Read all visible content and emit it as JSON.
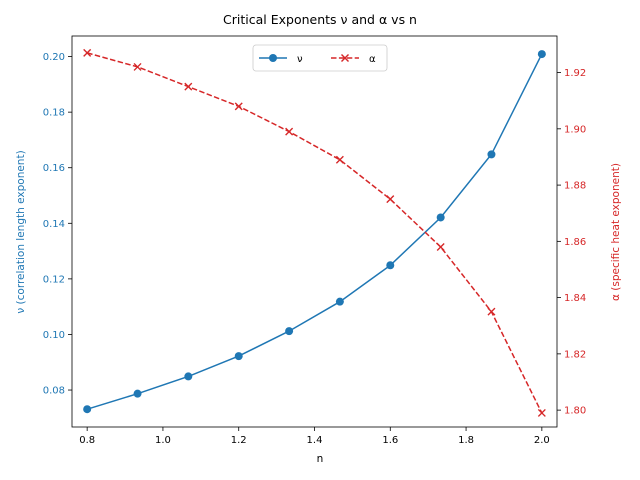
{
  "chart_data": {
    "type": "line",
    "title": "Critical Exponents ν and α vs n",
    "xlabel": "n",
    "ylabel_left": "ν (correlation length exponent)",
    "ylabel_right": "α (specific heat exponent)",
    "xlim": [
      0.76,
      2.04
    ],
    "ylim_left": [
      0.0667,
      0.2074
    ],
    "ylim_right": [
      1.794,
      1.933
    ],
    "x_ticks": [
      "0.8",
      "1.0",
      "1.2",
      "1.4",
      "1.6",
      "1.8",
      "2.0"
    ],
    "y_ticks_left": [
      "0.08",
      "0.10",
      "0.12",
      "0.14",
      "0.16",
      "0.18",
      "0.20"
    ],
    "y_ticks_right": [
      "1.80",
      "1.82",
      "1.84",
      "1.86",
      "1.88",
      "1.90",
      "1.92"
    ],
    "grid": false,
    "legend_position": "top-center",
    "x": [
      0.8,
      0.933,
      1.067,
      1.2,
      1.333,
      1.467,
      1.6,
      1.733,
      1.867,
      2.0
    ],
    "series": [
      {
        "name": "ν",
        "axis": "left",
        "color": "#1f77b4",
        "marker": "circle",
        "line_style": "solid",
        "values": [
          0.0731,
          0.0787,
          0.0849,
          0.0922,
          0.1012,
          0.1118,
          0.1249,
          0.1421,
          0.1648,
          0.2009
        ]
      },
      {
        "name": "α",
        "axis": "right",
        "color": "#d62728",
        "marker": "x",
        "line_style": "dashed",
        "values": [
          1.927,
          1.922,
          1.915,
          1.908,
          1.899,
          1.889,
          1.875,
          1.858,
          1.835,
          1.799
        ]
      }
    ]
  }
}
